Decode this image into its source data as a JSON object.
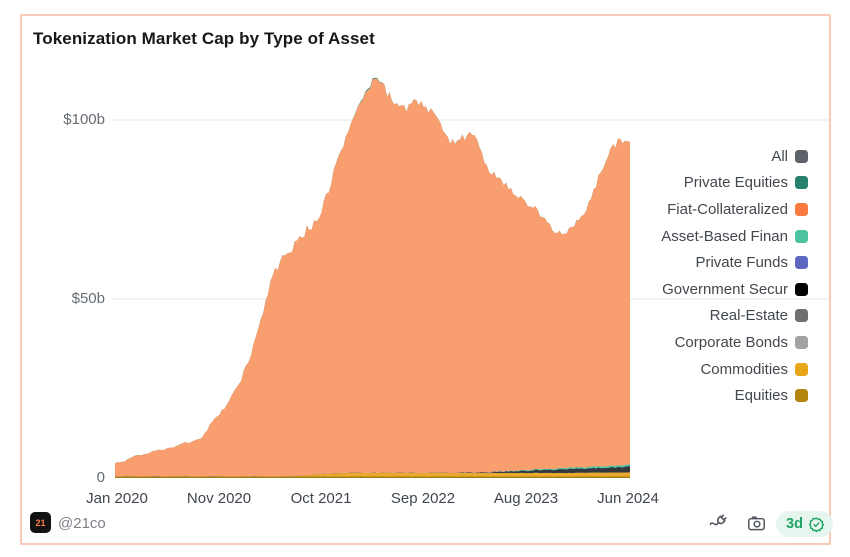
{
  "header": {
    "title": "Tokenization Market Cap by Type of Asset"
  },
  "footer": {
    "logo_text": "21",
    "handle": "@21co",
    "icons": [
      "plug-icon",
      "camera-icon"
    ],
    "badge": {
      "label": "3d",
      "icon": "seal-check-icon",
      "bg": "#e6f6ee",
      "fg": "#1fa463"
    }
  },
  "legend": {
    "items": [
      {
        "label": "All",
        "color": "#5d6269"
      },
      {
        "label": "Private Equities",
        "color": "#27806c"
      },
      {
        "label": "Fiat-Collateralized",
        "color": "#fa7b41"
      },
      {
        "label": "Asset-Based Finan",
        "color": "#4cc3a0"
      },
      {
        "label": "Private Funds",
        "color": "#5c68c0"
      },
      {
        "label": "Government Secur",
        "color": "#000000"
      },
      {
        "label": "Real-Estate",
        "color": "#6f6f71"
      },
      {
        "label": "Corporate Bonds",
        "color": "#a2a2a4"
      },
      {
        "label": "Commodities",
        "color": "#e8a619"
      },
      {
        "label": "Equities",
        "color": "#b2860e"
      }
    ]
  },
  "chart_data": {
    "type": "area",
    "stacked": true,
    "title": "Tokenization Market Cap by Type of Asset",
    "y_unit": "billions USD",
    "ylim": [
      0,
      113
    ],
    "grid": "horizontal",
    "legend_position": "right",
    "x": [
      "2020-01",
      "2020-02",
      "2020-03",
      "2020-04",
      "2020-05",
      "2020-06",
      "2020-07",
      "2020-08",
      "2020-09",
      "2020-10",
      "2020-11",
      "2020-12",
      "2021-01",
      "2021-02",
      "2021-03",
      "2021-04",
      "2021-05",
      "2021-06",
      "2021-07",
      "2021-08",
      "2021-09",
      "2021-10",
      "2021-11",
      "2021-12",
      "2022-01",
      "2022-02",
      "2022-03",
      "2022-04",
      "2022-05",
      "2022-06",
      "2022-07",
      "2022-08",
      "2022-09",
      "2022-10",
      "2022-11",
      "2022-12",
      "2023-01",
      "2023-02",
      "2023-03",
      "2023-04",
      "2023-05",
      "2023-06",
      "2023-07",
      "2023-08",
      "2023-09",
      "2023-10",
      "2023-11",
      "2023-12",
      "2024-01",
      "2024-02",
      "2024-03",
      "2024-04",
      "2024-05",
      "2024-06"
    ],
    "x_tick_labels": [
      "Jan 2020",
      "Nov 2020",
      "Oct 2021",
      "Sep 2022",
      "Aug 2023",
      "Jun 2024"
    ],
    "y_tick_labels": [
      "$100b",
      "$50b",
      "0"
    ],
    "series": [
      {
        "name": "Fiat-Collateralized",
        "key": "fiat_collateralized",
        "color": "#fa7b41",
        "area_color": "#f99e6e",
        "values": [
          3.8,
          4.2,
          5.8,
          6.2,
          7.0,
          7.6,
          8.2,
          9.2,
          9.8,
          11.1,
          15.1,
          18.1,
          22.6,
          27.6,
          33.6,
          43.6,
          54.6,
          60.6,
          62.6,
          66.4,
          69.2,
          71.0,
          79.8,
          88.7,
          95.6,
          101.6,
          107.6,
          110.6,
          106.6,
          102.6,
          101.6,
          104.6,
          102.6,
          99.6,
          93.6,
          92.6,
          93.5,
          95.4,
          87.3,
          83.1,
          81.0,
          77.8,
          75.7,
          73.5,
          70.4,
          67.3,
          65.2,
          67.0,
          69.9,
          74.8,
          82.5,
          88.4,
          91.2,
          89.0
        ]
      },
      {
        "name": "Private Equities",
        "key": "private_equities",
        "color": "#27806c",
        "area_color": "#2b7f6c",
        "values": [
          0,
          0,
          0,
          0,
          0,
          0,
          0,
          0,
          0,
          0,
          0,
          0,
          0,
          0,
          0,
          0,
          0,
          0,
          0,
          0,
          0,
          0,
          0,
          0,
          0,
          0.15,
          0.3,
          0.2,
          0,
          0,
          0,
          0,
          0,
          0,
          0,
          0,
          0,
          0,
          0,
          0,
          0,
          0,
          0,
          0,
          0,
          0,
          0,
          0,
          0,
          0,
          0,
          0,
          0,
          0
        ]
      },
      {
        "name": "Asset-Based Finance",
        "key": "asset_based_finance",
        "color": "#4cc3a0",
        "area_color": "#4fc7a4",
        "values": [
          0,
          0,
          0,
          0,
          0,
          0,
          0,
          0,
          0,
          0,
          0,
          0,
          0,
          0,
          0,
          0,
          0,
          0,
          0,
          0,
          0,
          0,
          0,
          0,
          0,
          0,
          0,
          0,
          0,
          0,
          0,
          0,
          0,
          0,
          0,
          0,
          0,
          0,
          0,
          0.05,
          0.1,
          0.15,
          0.2,
          0.25,
          0.3,
          0.3,
          0.35,
          0.4,
          0.4,
          0.42,
          0.45,
          0.47,
          0.5,
          0.52
        ]
      },
      {
        "name": "Private Funds",
        "key": "private_funds",
        "color": "#5c68c0",
        "area_color": "#5c68c0",
        "values": [
          0,
          0,
          0,
          0,
          0,
          0,
          0,
          0,
          0,
          0,
          0,
          0,
          0,
          0,
          0,
          0,
          0,
          0,
          0,
          0,
          0,
          0,
          0,
          0,
          0,
          0,
          0,
          0,
          0,
          0,
          0,
          0,
          0,
          0,
          0,
          0,
          0,
          0,
          0,
          0,
          0,
          0,
          0,
          0,
          0,
          0,
          0,
          0,
          0,
          0,
          0,
          0,
          0,
          0
        ]
      },
      {
        "name": "Government Securities",
        "key": "government_securities",
        "color": "#000000",
        "area_color": "#33383c",
        "values": [
          0,
          0,
          0,
          0,
          0,
          0,
          0,
          0,
          0,
          0,
          0,
          0,
          0,
          0,
          0,
          0,
          0,
          0,
          0,
          0,
          0,
          0,
          0,
          0,
          0,
          0,
          0,
          0,
          0,
          0,
          0,
          0,
          0,
          0,
          0,
          0,
          0.1,
          0.15,
          0.2,
          0.3,
          0.4,
          0.5,
          0.6,
          0.7,
          0.8,
          0.9,
          1.0,
          1.1,
          1.15,
          1.2,
          1.3,
          1.4,
          1.5,
          1.6
        ]
      },
      {
        "name": "Real-Estate",
        "key": "real_estate",
        "color": "#6f6f71",
        "area_color": "#6f6f71",
        "values": [
          0,
          0,
          0,
          0,
          0,
          0,
          0,
          0,
          0,
          0,
          0,
          0,
          0,
          0,
          0,
          0,
          0,
          0,
          0,
          0,
          0,
          0,
          0,
          0,
          0,
          0,
          0,
          0,
          0,
          0,
          0,
          0,
          0,
          0,
          0,
          0,
          0,
          0,
          0,
          0,
          0,
          0,
          0,
          0,
          0,
          0,
          0,
          0,
          0,
          0,
          0,
          0,
          0,
          0
        ]
      },
      {
        "name": "Corporate Bonds",
        "key": "corporate_bonds",
        "color": "#a2a2a4",
        "area_color": "#a2a2a4",
        "values": [
          0,
          0,
          0,
          0,
          0,
          0,
          0,
          0,
          0,
          0,
          0,
          0,
          0,
          0,
          0,
          0,
          0,
          0,
          0,
          0,
          0,
          0,
          0,
          0,
          0,
          0,
          0,
          0,
          0,
          0,
          0,
          0,
          0,
          0,
          0,
          0,
          0,
          0,
          0,
          0,
          0,
          0,
          0,
          0,
          0,
          0,
          0,
          0,
          0,
          0,
          0,
          0,
          0,
          0
        ]
      },
      {
        "name": "Commodities",
        "key": "commodities",
        "color": "#e8a619",
        "area_color": "#eaa92c",
        "values": [
          0,
          0,
          0,
          0,
          0,
          0,
          0,
          0,
          0,
          0,
          0,
          0,
          0,
          0,
          0,
          0,
          0,
          0,
          0,
          0.2,
          0.4,
          0.6,
          0.8,
          0.9,
          1.0,
          1.0,
          1.0,
          1.0,
          1.0,
          1.0,
          1.0,
          1.0,
          1.0,
          1.0,
          1.0,
          1.0,
          1.0,
          1.0,
          1.0,
          1.0,
          1.0,
          1.0,
          1.0,
          1.0,
          1.0,
          1.0,
          1.0,
          1.0,
          1.05,
          1.05,
          1.1,
          1.1,
          1.1,
          1.1
        ]
      },
      {
        "name": "Equities",
        "key": "equities",
        "color": "#b2860e",
        "area_color": "#a07d10",
        "values": [
          0.4,
          0.4,
          0.4,
          0.4,
          0.4,
          0.4,
          0.4,
          0.4,
          0.4,
          0.4,
          0.4,
          0.4,
          0.4,
          0.4,
          0.4,
          0.4,
          0.4,
          0.4,
          0.4,
          0.4,
          0.4,
          0.4,
          0.4,
          0.4,
          0.4,
          0.4,
          0.4,
          0.4,
          0.4,
          0.4,
          0.4,
          0.4,
          0.4,
          0.4,
          0.4,
          0.4,
          0.4,
          0.4,
          0.4,
          0.4,
          0.4,
          0.4,
          0.4,
          0.4,
          0.4,
          0.4,
          0.4,
          0.4,
          0.4,
          0.4,
          0.4,
          0.4,
          0.4,
          0.4
        ]
      }
    ]
  }
}
